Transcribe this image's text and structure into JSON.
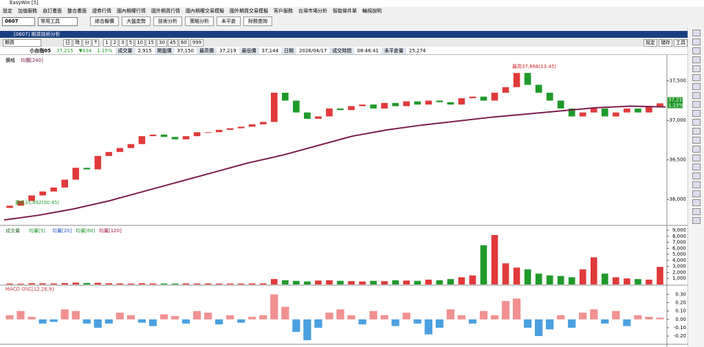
{
  "app": {
    "title": "EasyWin [5]",
    "menu": [
      "設定",
      "加值服務",
      "自訂畫面",
      "整合畫面",
      "證券行情",
      "國內期權行情",
      "國外期貨行情",
      "國內期權交易模擬",
      "國外期貨交易模擬",
      "客戶服務",
      "台灣市場分析",
      "智能條件單",
      "輪視說明"
    ],
    "toolbar": {
      "code": "0607",
      "tool": "常用工具",
      "buttons": [
        "綜合報價",
        "大盤走勢",
        "技術分析",
        "策略分析",
        "未平倉",
        "財務查詢"
      ]
    },
    "window_title": "[0607] 期貨技術分析",
    "controls": {
      "market": "期貨",
      "periods": [
        "日",
        "時",
        "分",
        "T"
      ],
      "minutes": [
        "1",
        "2",
        "3",
        "5",
        "10",
        "15",
        "30",
        "45",
        "60"
      ],
      "count": "999",
      "right_buttons": [
        "設定",
        "儲存",
        "工具"
      ]
    },
    "info": {
      "symbol": "小台指05",
      "price": "37,215",
      "change": "▼434",
      "percent": "1.15%",
      "volume_label": "成交量",
      "volume": "2,915",
      "open_label": "開盤價",
      "open": "37,150",
      "high_label": "最高價",
      "high": "37,219",
      "low_label": "最低價",
      "low": "37,144",
      "date_label": "日期",
      "date": "2026/04/17",
      "time_label": "成交時間",
      "time": "08:46:41",
      "oi_label": "未平倉量",
      "oi": "25,274"
    }
  },
  "chart_data": [
    {
      "type": "candlestick",
      "title": "價格",
      "ma_label": "均價[240]",
      "up_color": "#e03a3a",
      "down_color": "#1f9a2a",
      "ma_color": "#7a1a4a",
      "high_annotation": "最高37,666(13:45)",
      "low_annotation": "最低35,892(00:45)",
      "open": [
        35892,
        35920,
        35980,
        36050,
        36100,
        36150,
        36250,
        36400,
        36380,
        36550,
        36600,
        36650,
        36700,
        36800,
        36820,
        36790,
        36760,
        36800,
        36850,
        36850,
        36880,
        36900,
        36920,
        36950,
        36980,
        37350,
        37250,
        37100,
        37020,
        37050,
        37150,
        37130,
        37180,
        37200,
        37150,
        37220,
        37180,
        37240,
        37200,
        37250,
        37230,
        37200,
        37280,
        37300,
        37250,
        37350,
        37420,
        37600,
        37450,
        37350,
        37250,
        37150,
        37050,
        37100,
        37150,
        37050,
        37100,
        37150,
        37100,
        37180
      ],
      "close": [
        35920,
        35980,
        36050,
        36100,
        36150,
        36250,
        36400,
        36380,
        36550,
        36600,
        36650,
        36700,
        36800,
        36820,
        36790,
        36760,
        36800,
        36850,
        36850,
        36880,
        36900,
        36920,
        36950,
        36980,
        37350,
        37250,
        37100,
        37020,
        37050,
        37150,
        37130,
        37180,
        37200,
        37150,
        37220,
        37180,
        37240,
        37200,
        37250,
        37230,
        37200,
        37280,
        37300,
        37250,
        37350,
        37420,
        37600,
        37450,
        37350,
        37250,
        37150,
        37050,
        37100,
        37150,
        37050,
        37100,
        37150,
        37100,
        37180,
        37215
      ],
      "ma": [
        35740,
        35800,
        35880,
        35980,
        36100,
        36220,
        36340,
        36460,
        36560,
        36680,
        36800,
        36880,
        36940,
        36990,
        37040,
        37080,
        37120,
        37160,
        37180,
        37170
      ],
      "ylim": [
        35680,
        37810
      ],
      "yticks": [
        {
          "value": 36000,
          "label": "36,000"
        },
        {
          "value": 36500,
          "label": "36,500"
        },
        {
          "value": 37000,
          "label": "37,000"
        },
        {
          "value": 37500,
          "label": "37,500"
        }
      ]
    },
    {
      "type": "volume",
      "legend": [
        {
          "name": "成交量",
          "color": "#2a6a2a"
        },
        {
          "name": "均量[5]",
          "color": "#1f9a2a"
        },
        {
          "name": "均量[20]",
          "color": "#2050c0"
        },
        {
          "name": "均量[60]",
          "color": "#1f9a2a"
        },
        {
          "name": "均量[120]",
          "color": "#a01040"
        }
      ],
      "values": [
        150,
        120,
        200,
        180,
        160,
        220,
        300,
        250,
        280,
        200,
        180,
        150,
        200,
        170,
        160,
        150,
        180,
        160,
        170,
        150,
        160,
        150,
        170,
        180,
        900,
        700,
        600,
        500,
        650,
        700,
        600,
        550,
        500,
        600,
        550,
        700,
        650,
        600,
        800,
        700,
        900,
        1200,
        1500,
        6500,
        8200,
        3500,
        2800,
        2500,
        1800,
        1500,
        1400,
        1200,
        2500,
        4500,
        1800,
        1200,
        1000,
        900,
        800,
        2915
      ],
      "ylim": [
        0,
        9570
      ],
      "yticks": [
        {
          "value": 1000,
          "label": "1,000"
        },
        {
          "value": 2000,
          "label": "2,000"
        },
        {
          "value": 3000,
          "label": "3,000"
        },
        {
          "value": 4000,
          "label": "4,000"
        },
        {
          "value": 5000,
          "label": "5,000"
        },
        {
          "value": 6000,
          "label": "6,000"
        },
        {
          "value": 7000,
          "label": "7,000"
        },
        {
          "value": 8000,
          "label": "8,000"
        },
        {
          "value": 9000,
          "label": "9,000"
        }
      ]
    },
    {
      "type": "macd",
      "title": "MACD OSC[12,26,9]",
      "pos_color": "#f29090",
      "neg_color": "#4aa0e0",
      "values": [
        0.05,
        0.1,
        0.03,
        -0.05,
        -0.03,
        0.12,
        0.1,
        -0.05,
        -0.1,
        -0.05,
        0.08,
        0.05,
        -0.04,
        -0.08,
        0.06,
        0.04,
        -0.05,
        0.1,
        0.08,
        -0.06,
        0.05,
        -0.04,
        0.03,
        0.05,
        0.3,
        0.15,
        -0.15,
        -0.25,
        -0.1,
        0.08,
        0.12,
        0.05,
        -0.06,
        0.1,
        0.05,
        -0.08,
        0.08,
        -0.05,
        -0.18,
        -0.1,
        0.12,
        0.05,
        -0.05,
        0.1,
        0.05,
        0.22,
        0.25,
        -0.1,
        -0.2,
        -0.12,
        0.05,
        -0.1,
        0.08,
        0.12,
        -0.05,
        0.1,
        -0.08,
        0.05,
        0.03,
        0.02
      ],
      "ylim": [
        -0.29,
        0.41
      ],
      "yticks": [
        {
          "value": -0.2,
          "label": "-0.20"
        },
        {
          "value": -0.1,
          "label": "-0.10"
        },
        {
          "value": 0,
          "label": "0.00"
        },
        {
          "value": 0.1,
          "label": "0.10"
        },
        {
          "value": 0.2,
          "label": "0.20"
        },
        {
          "value": 0.3,
          "label": "0.30"
        }
      ]
    }
  ]
}
